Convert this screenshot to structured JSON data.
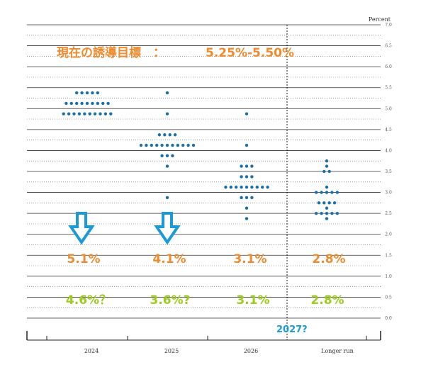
{
  "chart_data": {
    "type": "scatter",
    "title": "",
    "ylabel": "Percent",
    "ylim": [
      0,
      7
    ],
    "yticks": [
      "0.0",
      "0.5",
      "1.0",
      "1.5",
      "2.0",
      "2.5",
      "3.0",
      "3.5",
      "4.0",
      "4.5",
      "5.0",
      "5.5",
      "6.0",
      "6.5",
      "7.0"
    ],
    "categories": [
      "2024",
      "2025",
      "2026",
      "Longer run"
    ],
    "dot_color": "#1a6fa8",
    "series": [
      {
        "category": "2024",
        "levels": [
          {
            "rate": 5.375,
            "count": 5
          },
          {
            "rate": 5.125,
            "count": 9
          },
          {
            "rate": 4.875,
            "count": 10
          }
        ]
      },
      {
        "category": "2025",
        "levels": [
          {
            "rate": 5.375,
            "count": 1
          },
          {
            "rate": 4.875,
            "count": 1
          },
          {
            "rate": 4.375,
            "count": 4
          },
          {
            "rate": 4.125,
            "count": 11
          },
          {
            "rate": 3.875,
            "count": 3
          },
          {
            "rate": 3.625,
            "count": 1
          },
          {
            "rate": 2.875,
            "count": 1
          }
        ]
      },
      {
        "category": "2026",
        "levels": [
          {
            "rate": 4.875,
            "count": 1
          },
          {
            "rate": 4.125,
            "count": 1
          },
          {
            "rate": 3.625,
            "count": 3
          },
          {
            "rate": 3.375,
            "count": 3
          },
          {
            "rate": 3.125,
            "count": 9
          },
          {
            "rate": 2.875,
            "count": 3
          },
          {
            "rate": 2.625,
            "count": 1
          },
          {
            "rate": 2.375,
            "count": 1
          }
        ]
      },
      {
        "category": "Longer run",
        "levels": [
          {
            "rate": 3.75,
            "count": 1
          },
          {
            "rate": 3.625,
            "count": 1
          },
          {
            "rate": 3.5,
            "count": 2
          },
          {
            "rate": 3.125,
            "count": 1
          },
          {
            "rate": 3.0,
            "count": 5
          },
          {
            "rate": 2.75,
            "count": 4
          },
          {
            "rate": 2.625,
            "count": 1
          },
          {
            "rate": 2.5,
            "count": 5
          },
          {
            "rate": 2.375,
            "count": 1
          }
        ]
      }
    ],
    "annotations": {
      "target_label": "現在の誘導目標　：",
      "target_value": "5.25%-5.50%",
      "medians": [
        "5.1%",
        "4.1%",
        "3.1%",
        "2.8%"
      ],
      "revised": [
        "4.6%？",
        "3.6%?",
        "3.1%",
        "2.8%"
      ],
      "extra_year": "2027?",
      "colors": {
        "orange": "#f08a2c",
        "green": "#9ccc1c",
        "blue": "#1a9ad6",
        "arrow": "#1a9ad6"
      }
    }
  }
}
